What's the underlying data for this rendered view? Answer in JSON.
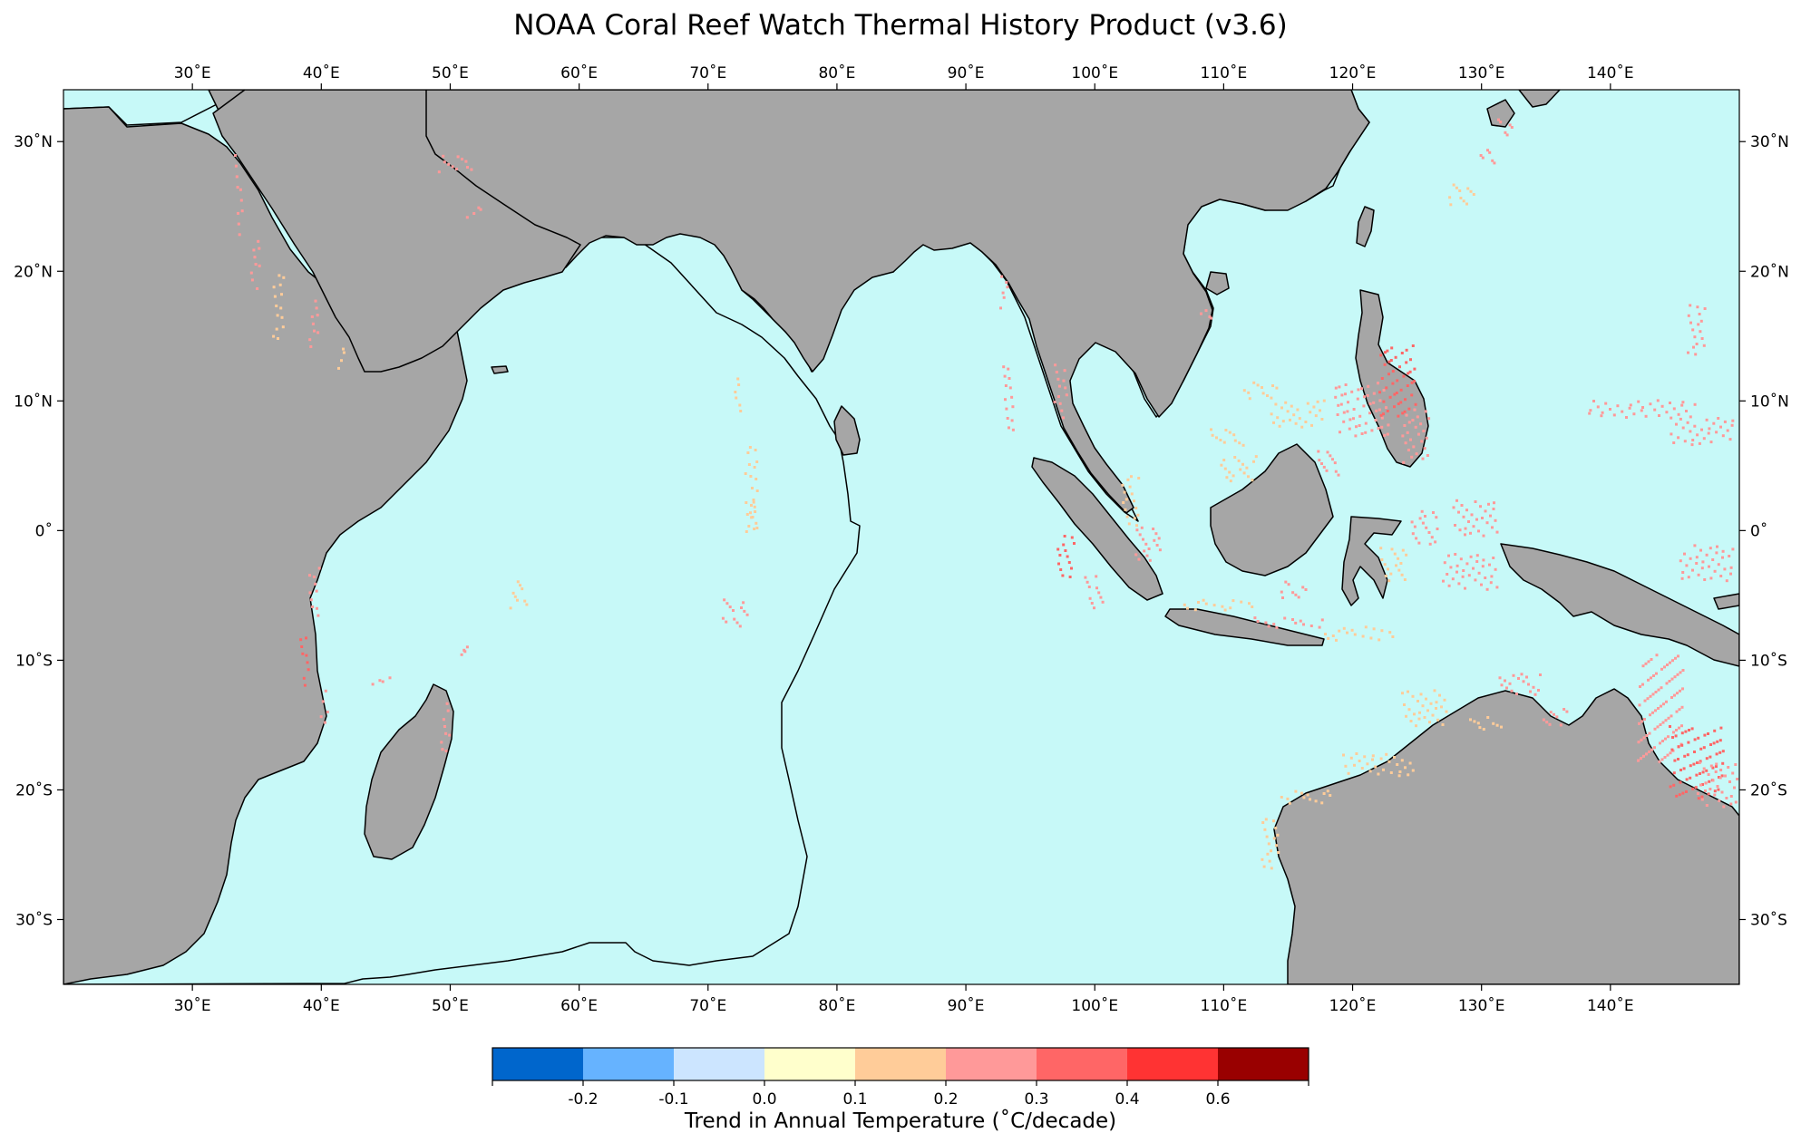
{
  "title": "NOAA Coral Reef Watch Thermal History Product (v3.6)",
  "colors": {
    "ocean": "#c7f9f8",
    "land": "#a6a6a6",
    "coast": "#000000",
    "trend_0_1": "#ffcc99",
    "trend_0_2": "#ff9999",
    "trend_0_3": "#ff6666"
  },
  "map": {
    "lon_range": [
      20,
      150
    ],
    "lat_range": [
      -35,
      34
    ],
    "lon_ticks": [
      {
        "value": 30,
        "label": "30˚E"
      },
      {
        "value": 40,
        "label": "40˚E"
      },
      {
        "value": 50,
        "label": "50˚E"
      },
      {
        "value": 60,
        "label": "60˚E"
      },
      {
        "value": 70,
        "label": "70˚E"
      },
      {
        "value": 80,
        "label": "80˚E"
      },
      {
        "value": 90,
        "label": "90˚E"
      },
      {
        "value": 100,
        "label": "100˚E"
      },
      {
        "value": 110,
        "label": "110˚E"
      },
      {
        "value": 120,
        "label": "120˚E"
      },
      {
        "value": 130,
        "label": "130˚E"
      },
      {
        "value": 140,
        "label": "140˚E"
      }
    ],
    "lat_ticks": [
      {
        "value": 30,
        "label": "30˚N"
      },
      {
        "value": 20,
        "label": "20˚N"
      },
      {
        "value": 10,
        "label": "10˚N"
      },
      {
        "value": 0,
        "label": "0˚"
      },
      {
        "value": -10,
        "label": "10˚S"
      },
      {
        "value": -20,
        "label": "20˚S"
      },
      {
        "value": -30,
        "label": "30˚S"
      }
    ]
  },
  "colorbar": {
    "title": "Trend in Annual Temperature (˚C/decade)",
    "bins": [
      {
        "color": "#0066cc"
      },
      {
        "color": "#66b3ff"
      },
      {
        "color": "#cce5ff"
      },
      {
        "color": "#ffffcc"
      },
      {
        "color": "#ffcc99"
      },
      {
        "color": "#ff9999"
      },
      {
        "color": "#ff6666"
      },
      {
        "color": "#ff3333"
      },
      {
        "color": "#990000"
      }
    ],
    "tick_labels": [
      "-0.2",
      "-0.1",
      "0.0",
      "0.1",
      "0.2",
      "0.3",
      "0.4",
      "0.6"
    ]
  }
}
